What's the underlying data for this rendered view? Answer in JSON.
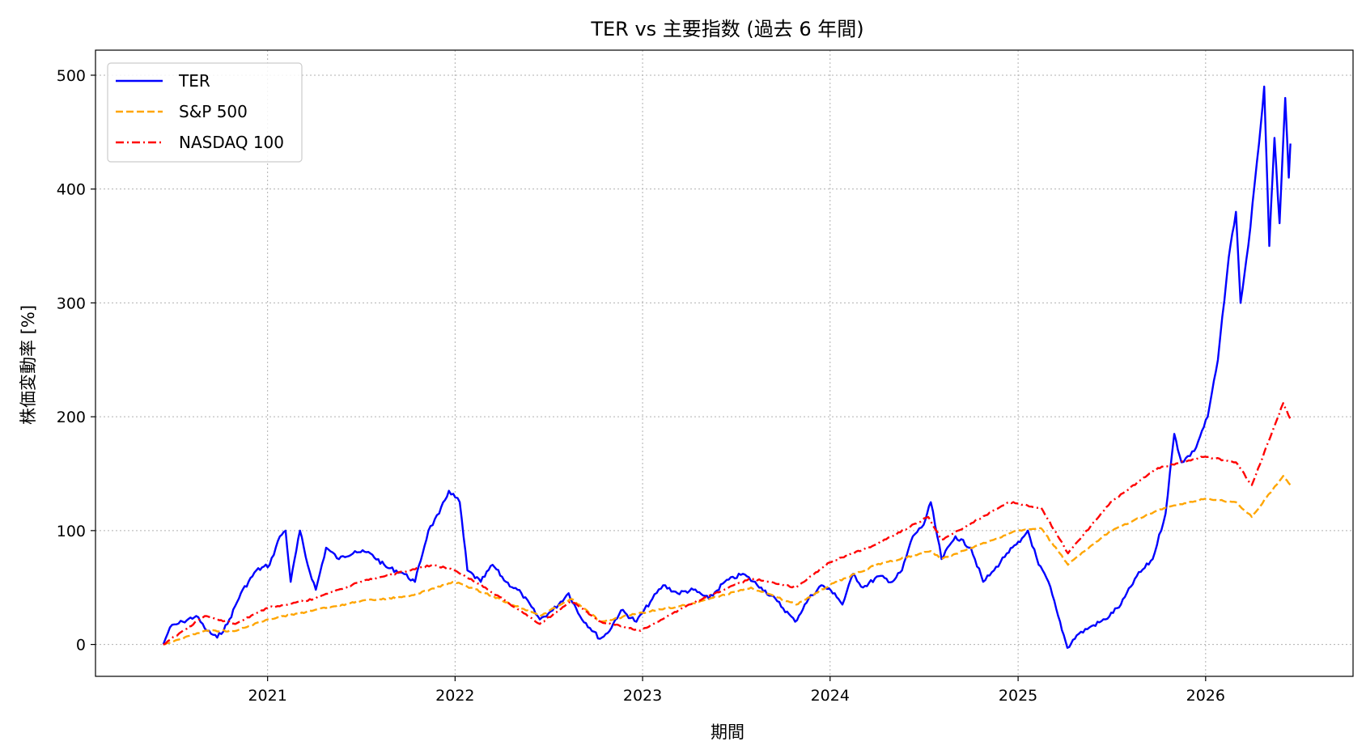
{
  "chart_data": {
    "type": "line",
    "title": "TER vs 主要指数 (過去 6 年間)",
    "xlabel": "期間",
    "ylabel": "株価変動率 [%]",
    "xlim": [
      "2020-02-01",
      "2026-10-15"
    ],
    "ylim": [
      -28,
      522
    ],
    "x_ticks": [
      "2021",
      "2022",
      "2023",
      "2024",
      "2025",
      "2026"
    ],
    "y_ticks": [
      0,
      100,
      200,
      300,
      400,
      500
    ],
    "grid": true,
    "legend_position": "top-left",
    "series": [
      {
        "name": "TER",
        "color": "#0000ff",
        "dash": "solid",
        "points": [
          [
            "2020-06-12",
            0
          ],
          [
            "2020-06-25",
            15
          ],
          [
            "2020-07-20",
            20
          ],
          [
            "2020-08-15",
            25
          ],
          [
            "2020-09-05",
            12
          ],
          [
            "2020-09-25",
            6
          ],
          [
            "2020-10-15",
            18
          ],
          [
            "2020-11-10",
            45
          ],
          [
            "2020-12-10",
            65
          ],
          [
            "2021-01-05",
            70
          ],
          [
            "2021-01-25",
            95
          ],
          [
            "2021-02-05",
            100
          ],
          [
            "2021-02-15",
            55
          ],
          [
            "2021-03-05",
            100
          ],
          [
            "2021-03-20",
            70
          ],
          [
            "2021-04-05",
            48
          ],
          [
            "2021-04-25",
            85
          ],
          [
            "2021-05-20",
            75
          ],
          [
            "2021-06-20",
            82
          ],
          [
            "2021-07-20",
            80
          ],
          [
            "2021-08-20",
            68
          ],
          [
            "2021-09-20",
            63
          ],
          [
            "2021-10-15",
            55
          ],
          [
            "2021-11-10",
            100
          ],
          [
            "2021-12-01",
            115
          ],
          [
            "2021-12-20",
            135
          ],
          [
            "2022-01-10",
            125
          ],
          [
            "2022-01-25",
            65
          ],
          [
            "2022-02-20",
            55
          ],
          [
            "2022-03-15",
            70
          ],
          [
            "2022-04-10",
            55
          ],
          [
            "2022-05-10",
            45
          ],
          [
            "2022-06-15",
            22
          ],
          [
            "2022-07-10",
            30
          ],
          [
            "2022-08-10",
            45
          ],
          [
            "2022-09-01",
            25
          ],
          [
            "2022-10-10",
            5
          ],
          [
            "2022-10-25",
            10
          ],
          [
            "2022-11-20",
            30
          ],
          [
            "2022-12-20",
            20
          ],
          [
            "2023-01-20",
            40
          ],
          [
            "2023-02-10",
            52
          ],
          [
            "2023-03-10",
            45
          ],
          [
            "2023-04-10",
            48
          ],
          [
            "2023-05-10",
            40
          ],
          [
            "2023-06-10",
            55
          ],
          [
            "2023-07-15",
            62
          ],
          [
            "2023-08-20",
            50
          ],
          [
            "2023-09-20",
            38
          ],
          [
            "2023-10-25",
            20
          ],
          [
            "2023-11-20",
            40
          ],
          [
            "2023-12-15",
            52
          ],
          [
            "2024-01-10",
            45
          ],
          [
            "2024-01-25",
            35
          ],
          [
            "2024-02-15",
            62
          ],
          [
            "2024-03-05",
            50
          ],
          [
            "2024-04-05",
            60
          ],
          [
            "2024-05-01",
            55
          ],
          [
            "2024-05-20",
            65
          ],
          [
            "2024-06-10",
            95
          ],
          [
            "2024-07-01",
            105
          ],
          [
            "2024-07-15",
            125
          ],
          [
            "2024-08-05",
            75
          ],
          [
            "2024-09-01",
            95
          ],
          [
            "2024-10-01",
            85
          ],
          [
            "2024-10-25",
            55
          ],
          [
            "2024-11-15",
            65
          ],
          [
            "2024-12-10",
            80
          ],
          [
            "2025-01-05",
            90
          ],
          [
            "2025-01-20",
            100
          ],
          [
            "2025-02-10",
            70
          ],
          [
            "2025-03-01",
            55
          ],
          [
            "2025-03-20",
            25
          ],
          [
            "2025-04-07",
            -3
          ],
          [
            "2025-04-25",
            8
          ],
          [
            "2025-05-20",
            15
          ],
          [
            "2025-06-20",
            22
          ],
          [
            "2025-07-20",
            35
          ],
          [
            "2025-08-20",
            60
          ],
          [
            "2025-09-20",
            75
          ],
          [
            "2025-10-15",
            115
          ],
          [
            "2025-11-01",
            185
          ],
          [
            "2025-11-15",
            160
          ],
          [
            "2025-12-10",
            170
          ],
          [
            "2026-01-05",
            200
          ],
          [
            "2026-01-25",
            250
          ],
          [
            "2026-02-15",
            340
          ],
          [
            "2026-03-01",
            380
          ],
          [
            "2026-03-10",
            300
          ],
          [
            "2026-03-25",
            350
          ],
          [
            "2026-04-15",
            440
          ],
          [
            "2026-04-25",
            490
          ],
          [
            "2026-05-05",
            350
          ],
          [
            "2026-05-15",
            445
          ],
          [
            "2026-05-25",
            370
          ],
          [
            "2026-06-05",
            480
          ],
          [
            "2026-06-12",
            410
          ],
          [
            "2026-06-15",
            440
          ]
        ]
      },
      {
        "name": "S&P 500",
        "color": "#ffa500",
        "dash": "dashed",
        "points": [
          [
            "2020-06-12",
            0
          ],
          [
            "2020-09-01",
            12
          ],
          [
            "2020-11-01",
            12
          ],
          [
            "2021-01-01",
            22
          ],
          [
            "2021-04-01",
            30
          ],
          [
            "2021-07-01",
            38
          ],
          [
            "2021-10-01",
            42
          ],
          [
            "2021-12-31",
            55
          ],
          [
            "2022-03-01",
            45
          ],
          [
            "2022-06-15",
            25
          ],
          [
            "2022-08-15",
            40
          ],
          [
            "2022-10-12",
            20
          ],
          [
            "2023-01-01",
            28
          ],
          [
            "2023-04-01",
            35
          ],
          [
            "2023-07-31",
            50
          ],
          [
            "2023-10-27",
            35
          ],
          [
            "2023-12-31",
            52
          ],
          [
            "2024-03-31",
            70
          ],
          [
            "2024-07-15",
            82
          ],
          [
            "2024-08-05",
            75
          ],
          [
            "2024-12-31",
            100
          ],
          [
            "2025-02-15",
            102
          ],
          [
            "2025-04-08",
            70
          ],
          [
            "2025-06-30",
            100
          ],
          [
            "2025-09-30",
            118
          ],
          [
            "2025-12-31",
            128
          ],
          [
            "2026-03-01",
            125
          ],
          [
            "2026-04-01",
            112
          ],
          [
            "2026-06-01",
            148
          ],
          [
            "2026-06-15",
            140
          ]
        ]
      },
      {
        "name": "NASDAQ 100",
        "color": "#ff0000",
        "dash": "dashdot",
        "points": [
          [
            "2020-06-12",
            0
          ],
          [
            "2020-09-01",
            25
          ],
          [
            "2020-10-30",
            18
          ],
          [
            "2021-01-01",
            32
          ],
          [
            "2021-04-01",
            40
          ],
          [
            "2021-07-01",
            55
          ],
          [
            "2021-11-19",
            70
          ],
          [
            "2022-01-01",
            65
          ],
          [
            "2022-03-01",
            50
          ],
          [
            "2022-06-15",
            18
          ],
          [
            "2022-08-15",
            38
          ],
          [
            "2022-10-12",
            20
          ],
          [
            "2022-12-28",
            12
          ],
          [
            "2023-04-01",
            35
          ],
          [
            "2023-07-31",
            58
          ],
          [
            "2023-10-27",
            50
          ],
          [
            "2023-12-31",
            72
          ],
          [
            "2024-03-31",
            88
          ],
          [
            "2024-07-10",
            112
          ],
          [
            "2024-08-05",
            92
          ],
          [
            "2024-12-15",
            125
          ],
          [
            "2025-02-15",
            120
          ],
          [
            "2025-04-08",
            80
          ],
          [
            "2025-06-30",
            125
          ],
          [
            "2025-09-30",
            155
          ],
          [
            "2025-12-31",
            165
          ],
          [
            "2026-03-01",
            160
          ],
          [
            "2026-04-01",
            140
          ],
          [
            "2026-06-01",
            212
          ],
          [
            "2026-06-15",
            198
          ]
        ]
      }
    ]
  }
}
